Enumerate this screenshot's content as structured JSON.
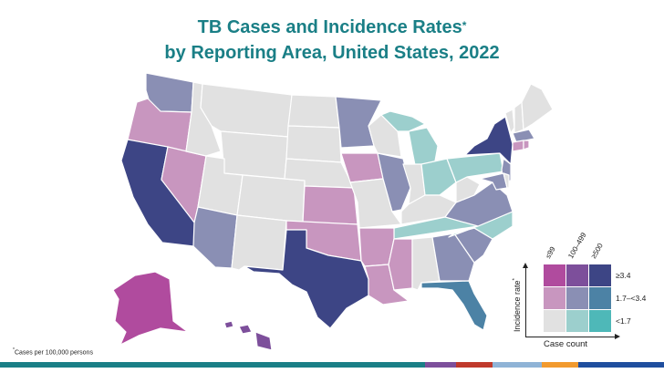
{
  "title": {
    "line1": "TB Cases and Incidence Rates",
    "line1_mark": "*",
    "line2": "by Reporting Area, United States, 2022"
  },
  "footnote": {
    "mark": "*",
    "text": "Cases per 100,000  persons"
  },
  "legend": {
    "columns": [
      "≤99",
      "100–499",
      "≥500"
    ],
    "rows": [
      "≥3.4",
      "1.7–<3.4",
      "<1.7"
    ],
    "y_axis": "Incidence rate",
    "y_axis_mark": "*",
    "x_axis": "Case count",
    "colors": [
      [
        "#b04b9e",
        "#7d4f9b",
        "#3d4585"
      ],
      [
        "#c896bf",
        "#8a8fb4",
        "#4c82a5"
      ],
      [
        "#e1e1e1",
        "#9ccfcd",
        "#4eb8b8"
      ]
    ]
  },
  "bottom_bar_colors": [
    "#1a7f86",
    "#7d4f9b",
    "#c0392b",
    "#8fb3d6",
    "#f29a2e",
    "#1f4e9e"
  ],
  "map_palette": {
    "low_low": "#e1e1e1",
    "low_mid": "#9ccfcd",
    "low_high": "#4eb8b8",
    "mid_low": "#c896bf",
    "mid_mid": "#8a8fb4",
    "mid_high": "#4c82a5",
    "high_low": "#b04b9e",
    "high_mid": "#7d4f9b",
    "high_high": "#3d4585"
  }
}
